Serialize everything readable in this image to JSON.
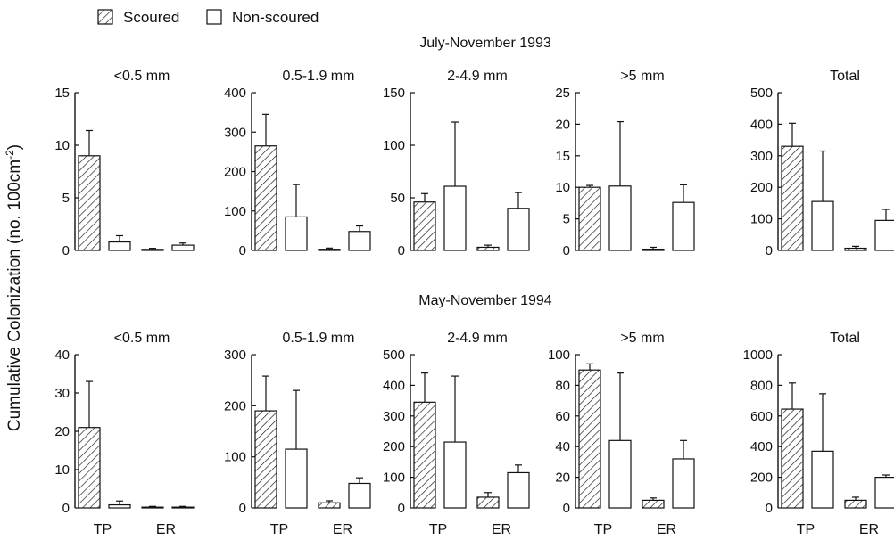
{
  "figure": {
    "ylabel": "Cumulative Colonization (no. 100cm",
    "ylabel_sup": "-2",
    "ylabel_close": ")",
    "legend": [
      {
        "label": "Scoured",
        "pattern": "hatched"
      },
      {
        "label": "Non-scoured",
        "pattern": "open"
      }
    ],
    "categories": [
      "TP",
      "ER"
    ]
  },
  "chart_data": [
    {
      "type": "bar",
      "row": "July-November 1993",
      "title": "<0.5 mm",
      "categories": [
        "TP",
        "ER"
      ],
      "ylim": [
        0,
        15
      ],
      "yticks": [
        0,
        5,
        10,
        15
      ],
      "series": [
        {
          "name": "Scoured",
          "values": [
            9,
            0.1
          ],
          "errors": [
            2.4,
            0.1
          ]
        },
        {
          "name": "Non-scoured",
          "values": [
            0.8,
            0.5
          ],
          "errors": [
            0.6,
            0.2
          ]
        }
      ]
    },
    {
      "type": "bar",
      "row": "July-November 1993",
      "title": "0.5-1.9 mm",
      "categories": [
        "TP",
        "ER"
      ],
      "ylim": [
        0,
        400
      ],
      "yticks": [
        0,
        100,
        200,
        300,
        400
      ],
      "series": [
        {
          "name": "Scoured",
          "values": [
            265,
            3
          ],
          "errors": [
            80,
            3
          ]
        },
        {
          "name": "Non-scoured",
          "values": [
            85,
            48
          ],
          "errors": [
            82,
            14
          ]
        }
      ]
    },
    {
      "type": "bar",
      "row": "July-November 1993",
      "title": "2-4.9 mm",
      "categories": [
        "TP",
        "ER"
      ],
      "ylim": [
        0,
        150
      ],
      "yticks": [
        0,
        50,
        100,
        150
      ],
      "series": [
        {
          "name": "Scoured",
          "values": [
            46,
            3
          ],
          "errors": [
            8,
            2
          ]
        },
        {
          "name": "Non-scoured",
          "values": [
            61,
            40
          ],
          "errors": [
            61,
            15
          ]
        }
      ]
    },
    {
      "type": "bar",
      "row": "July-November 1993",
      "title": ">5 mm",
      "categories": [
        "TP",
        "ER"
      ],
      "ylim": [
        0,
        25
      ],
      "yticks": [
        0,
        5,
        10,
        15,
        20,
        25
      ],
      "series": [
        {
          "name": "Scoured",
          "values": [
            10,
            0.2
          ],
          "errors": [
            0.3,
            0.3
          ]
        },
        {
          "name": "Non-scoured",
          "values": [
            10.2,
            7.6
          ],
          "errors": [
            10.2,
            2.8
          ]
        }
      ]
    },
    {
      "type": "bar",
      "row": "July-November 1993",
      "title": "Total",
      "categories": [
        "TP",
        "ER"
      ],
      "ylim": [
        0,
        500
      ],
      "yticks": [
        0,
        100,
        200,
        300,
        400,
        500
      ],
      "series": [
        {
          "name": "Scoured",
          "values": [
            330,
            7
          ],
          "errors": [
            73,
            6
          ]
        },
        {
          "name": "Non-scoured",
          "values": [
            155,
            95
          ],
          "errors": [
            160,
            35
          ]
        }
      ]
    },
    {
      "type": "bar",
      "row": "May-November 1994",
      "title": "<0.5 mm",
      "categories": [
        "TP",
        "ER"
      ],
      "ylim": [
        0,
        40
      ],
      "yticks": [
        0,
        10,
        20,
        30,
        40
      ],
      "series": [
        {
          "name": "Scoured",
          "values": [
            21,
            0.2
          ],
          "errors": [
            12,
            0.2
          ]
        },
        {
          "name": "Non-scoured",
          "values": [
            0.8,
            0.2
          ],
          "errors": [
            1,
            0.2
          ]
        }
      ]
    },
    {
      "type": "bar",
      "row": "May-November 1994",
      "title": "0.5-1.9 mm",
      "categories": [
        "TP",
        "ER"
      ],
      "ylim": [
        0,
        300
      ],
      "yticks": [
        0,
        100,
        200,
        300
      ],
      "series": [
        {
          "name": "Scoured",
          "values": [
            190,
            10
          ],
          "errors": [
            68,
            4
          ]
        },
        {
          "name": "Non-scoured",
          "values": [
            115,
            48
          ],
          "errors": [
            115,
            11
          ]
        }
      ]
    },
    {
      "type": "bar",
      "row": "May-November 1994",
      "title": "2-4.9 mm",
      "categories": [
        "TP",
        "ER"
      ],
      "ylim": [
        0,
        500
      ],
      "yticks": [
        0,
        100,
        200,
        300,
        400,
        500
      ],
      "series": [
        {
          "name": "Scoured",
          "values": [
            345,
            35
          ],
          "errors": [
            95,
            15
          ]
        },
        {
          "name": "Non-scoured",
          "values": [
            215,
            115
          ],
          "errors": [
            215,
            25
          ]
        }
      ]
    },
    {
      "type": "bar",
      "row": "May-November 1994",
      "title": ">5 mm",
      "categories": [
        "TP",
        "ER"
      ],
      "ylim": [
        0,
        100
      ],
      "yticks": [
        0,
        20,
        40,
        60,
        80,
        100
      ],
      "series": [
        {
          "name": "Scoured",
          "values": [
            90,
            5
          ],
          "errors": [
            4,
            1.5
          ]
        },
        {
          "name": "Non-scoured",
          "values": [
            44,
            32
          ],
          "errors": [
            44,
            12
          ]
        }
      ]
    },
    {
      "type": "bar",
      "row": "May-November 1994",
      "title": "Total",
      "categories": [
        "TP",
        "ER"
      ],
      "ylim": [
        0,
        1000
      ],
      "yticks": [
        0,
        200,
        400,
        600,
        800,
        1000
      ],
      "series": [
        {
          "name": "Scoured",
          "values": [
            645,
            50
          ],
          "errors": [
            170,
            20
          ]
        },
        {
          "name": "Non-scoured",
          "values": [
            370,
            200
          ],
          "errors": [
            375,
            15
          ]
        }
      ]
    }
  ]
}
